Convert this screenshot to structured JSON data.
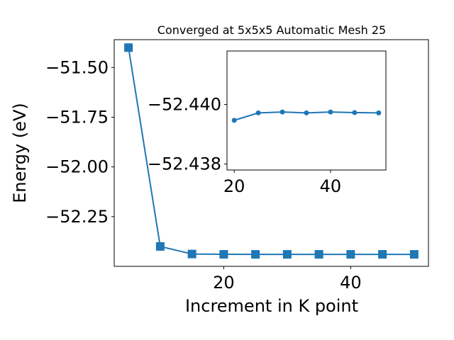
{
  "chart_data": [
    {
      "type": "line",
      "title": "Converged at 5x5x5 Automatic Mesh 25",
      "xlabel": "Increment in K point",
      "ylabel": "Energy (eV)",
      "x": [
        5,
        10,
        15,
        20,
        25,
        30,
        35,
        40,
        45,
        50
      ],
      "series": [
        {
          "values": [
            -51.4,
            -52.4,
            -52.438,
            -52.4396,
            -52.4397,
            -52.4397,
            -52.4397,
            -52.4397,
            -52.4397,
            -52.4397
          ],
          "color": "#1f77b4",
          "marker": "square"
        }
      ],
      "xlim": [
        2.75,
        52.25
      ],
      "ylim": [
        -52.5,
        -51.36
      ],
      "xticks": [
        20,
        40
      ],
      "xtick_labels": [
        "20",
        "40"
      ],
      "yticks": [
        -51.5,
        -51.75,
        -52.0,
        -52.25
      ],
      "ytick_labels": [
        "−51.50",
        "−51.75",
        "−52.00",
        "−52.25"
      ],
      "grid": false
    },
    {
      "type": "line",
      "title": "",
      "xlabel": "",
      "ylabel": "",
      "inset": true,
      "x": [
        20,
        25,
        30,
        35,
        40,
        45,
        50
      ],
      "series": [
        {
          "values": [
            -52.43947,
            -52.43972,
            -52.43975,
            -52.43972,
            -52.43975,
            -52.43973,
            -52.43972
          ],
          "color": "#1f77b4",
          "marker": "circle"
        }
      ],
      "xlim": [
        18.5,
        51.5
      ],
      "ylim": [
        -52.4378,
        -52.4418
      ],
      "xticks": [
        20,
        40
      ],
      "xtick_labels": [
        "20",
        "40"
      ],
      "yticks": [
        -52.44,
        -52.438
      ],
      "ytick_labels": [
        "−52.440",
        "−52.438"
      ],
      "grid": false
    }
  ]
}
